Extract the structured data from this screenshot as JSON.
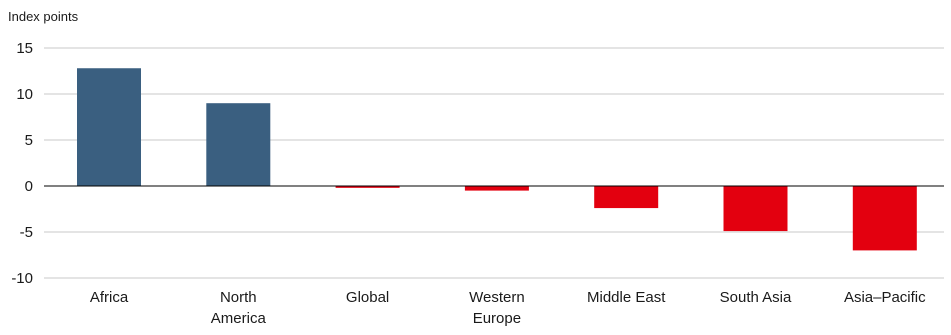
{
  "chart_data": {
    "type": "bar",
    "ylabel": "Index points",
    "title": "",
    "xlabel": "",
    "ylim": [
      -10,
      15
    ],
    "yticks": [
      15,
      10,
      5,
      0,
      -5,
      -10
    ],
    "ytick_labels": [
      "15",
      "10",
      "5",
      "0",
      "-5",
      "-10"
    ],
    "grid": true,
    "legend": "none",
    "categories": [
      [
        "Africa"
      ],
      [
        "North",
        "America"
      ],
      [
        "Global"
      ],
      [
        "Western",
        "Europe"
      ],
      [
        "Middle East"
      ],
      [
        "South Asia"
      ],
      [
        "Asia–Pacific"
      ]
    ],
    "values": [
      12.8,
      9.0,
      -0.2,
      -0.5,
      -2.4,
      -4.9,
      -7.0
    ],
    "colors": {
      "positive": "#3a5f80",
      "negative": "#e3000f",
      "grid": "#c8c8c8",
      "zero_line": "#000000"
    }
  }
}
